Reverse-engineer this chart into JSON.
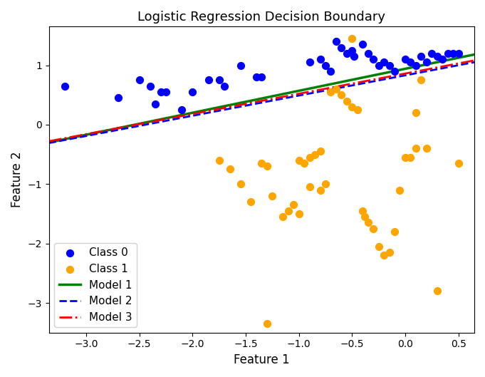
{
  "title": "Logistic Regression Decision Boundary",
  "xlabel": "Feature 1",
  "ylabel": "Feature 2",
  "xlim": [
    -3.35,
    0.65
  ],
  "ylim": [
    -3.5,
    1.65
  ],
  "class0_color": "#0000ff",
  "class1_color": "#ffa500",
  "class0_points": [
    [
      -3.2,
      0.65
    ],
    [
      -2.7,
      0.45
    ],
    [
      -2.5,
      0.75
    ],
    [
      -2.4,
      0.65
    ],
    [
      -2.35,
      0.35
    ],
    [
      -2.3,
      0.55
    ],
    [
      -2.25,
      0.55
    ],
    [
      -2.1,
      0.25
    ],
    [
      -2.0,
      0.55
    ],
    [
      -1.85,
      0.75
    ],
    [
      -1.75,
      0.75
    ],
    [
      -1.7,
      0.65
    ],
    [
      -1.55,
      1.0
    ],
    [
      -1.4,
      0.8
    ],
    [
      -1.35,
      0.8
    ],
    [
      -0.9,
      1.05
    ],
    [
      -0.8,
      1.1
    ],
    [
      -0.75,
      1.0
    ],
    [
      -0.7,
      0.9
    ],
    [
      -0.65,
      1.4
    ],
    [
      -0.6,
      1.3
    ],
    [
      -0.55,
      1.2
    ],
    [
      -0.5,
      1.25
    ],
    [
      -0.48,
      1.15
    ],
    [
      -0.4,
      1.35
    ],
    [
      -0.35,
      1.2
    ],
    [
      -0.3,
      1.1
    ],
    [
      -0.25,
      1.0
    ],
    [
      -0.2,
      1.05
    ],
    [
      -0.15,
      1.0
    ],
    [
      -0.1,
      0.9
    ],
    [
      0.0,
      1.1
    ],
    [
      0.05,
      1.05
    ],
    [
      0.1,
      1.0
    ],
    [
      0.15,
      1.15
    ],
    [
      0.2,
      1.05
    ],
    [
      0.25,
      1.2
    ],
    [
      0.3,
      1.15
    ],
    [
      0.35,
      1.1
    ],
    [
      0.4,
      1.2
    ],
    [
      0.45,
      1.2
    ],
    [
      0.5,
      1.2
    ]
  ],
  "class1_points": [
    [
      -0.5,
      1.45
    ],
    [
      -1.75,
      -0.6
    ],
    [
      -1.65,
      -0.75
    ],
    [
      -1.55,
      -1.0
    ],
    [
      -1.45,
      -1.3
    ],
    [
      -1.35,
      -0.65
    ],
    [
      -1.3,
      -0.7
    ],
    [
      -1.25,
      -1.2
    ],
    [
      -1.3,
      -3.35
    ],
    [
      -1.15,
      -1.55
    ],
    [
      -1.1,
      -1.45
    ],
    [
      -1.05,
      -1.35
    ],
    [
      -1.0,
      -1.5
    ],
    [
      -1.0,
      -0.6
    ],
    [
      -0.95,
      -0.65
    ],
    [
      -0.9,
      -0.55
    ],
    [
      -0.9,
      -1.05
    ],
    [
      -0.85,
      -0.5
    ],
    [
      -0.8,
      -1.1
    ],
    [
      -0.8,
      -0.45
    ],
    [
      -0.75,
      -1.0
    ],
    [
      -0.7,
      0.55
    ],
    [
      -0.65,
      0.6
    ],
    [
      -0.6,
      0.5
    ],
    [
      -0.55,
      0.4
    ],
    [
      -0.5,
      0.3
    ],
    [
      -0.45,
      0.25
    ],
    [
      -0.4,
      -1.45
    ],
    [
      -0.38,
      -1.55
    ],
    [
      -0.35,
      -1.65
    ],
    [
      -0.3,
      -1.75
    ],
    [
      -0.25,
      -2.05
    ],
    [
      -0.2,
      -2.2
    ],
    [
      -0.15,
      -2.15
    ],
    [
      -0.1,
      -1.8
    ],
    [
      -0.05,
      -1.1
    ],
    [
      0.0,
      -0.55
    ],
    [
      0.05,
      -0.55
    ],
    [
      0.1,
      0.2
    ],
    [
      0.1,
      -0.4
    ],
    [
      0.15,
      0.75
    ],
    [
      0.2,
      -0.4
    ],
    [
      0.3,
      -2.8
    ],
    [
      0.5,
      -0.65
    ]
  ],
  "model1": {
    "slope": 0.37,
    "intercept": 0.94,
    "color": "#008000",
    "linestyle": "-",
    "linewidth": 2.5,
    "label": "Model 1"
  },
  "model2": {
    "slope": 0.34,
    "intercept": 0.83,
    "color": "#0000ff",
    "linestyle": "--",
    "linewidth": 2.0,
    "label": "Model 2"
  },
  "model3": {
    "slope": 0.34,
    "intercept": 0.86,
    "color": "#ff0000",
    "linestyle": "-.",
    "linewidth": 2.0,
    "label": "Model 3"
  },
  "scatter_size": 50,
  "background_color": "#ffffff",
  "legend_loc": "lower left"
}
